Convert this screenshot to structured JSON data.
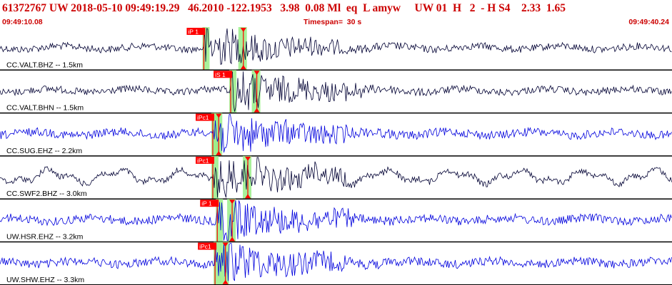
{
  "header": {
    "title": "61372767 UW 2018-05-10 09:49:19.29   46.2010 -122.1953   3.98  0.08 Ml  eq  L amyw     UW 01  H   2  - H S4    2.33  1.65",
    "start_time": "09:49:10.08",
    "timespan": "Timespan=  30 s",
    "end_time": "09:49:40.24"
  },
  "colors": {
    "title_red": "#cc0000",
    "trace_black": "#000033",
    "trace_blue": "#0000dd",
    "pick_red": "#ff0000",
    "window_green": "#99ee88"
  },
  "traces": [
    {
      "label": "CC.VALT.BHZ -- 1.5km",
      "color": "black",
      "pick": "iP 1",
      "pick_time": 9.1,
      "s_time": 10.8
    },
    {
      "label": "CC.VALT.BHN -- 1.5km",
      "color": "black",
      "pick": "iS 1",
      "pick_time": 10.3,
      "s_time": 11.4
    },
    {
      "label": "CC.SUG.EHZ -- 2.2km",
      "color": "blue",
      "pick": "iPc1",
      "pick_time": 9.5,
      "s_time": 9.7
    },
    {
      "label": "CC.SWF2.BHZ -- 3.0km",
      "color": "black",
      "pick": "iPc1",
      "pick_time": 9.5,
      "s_time": 11.0
    },
    {
      "label": "UW.HSR.EHZ -- 3.2km",
      "color": "blue",
      "pick": "iP 1",
      "pick_time": 9.7,
      "s_time": 10.3
    },
    {
      "label": "UW.SHW.EHZ -- 3.3km",
      "color": "blue",
      "pick": "iPc1",
      "pick_time": 9.6,
      "s_time": 10.0
    }
  ]
}
